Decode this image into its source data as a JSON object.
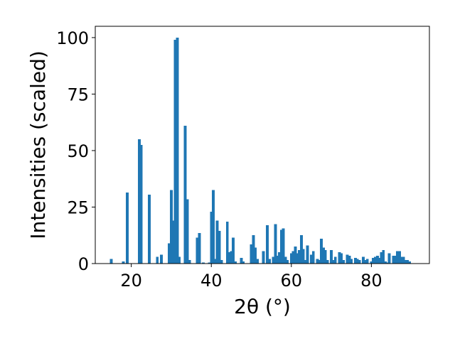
{
  "chart_data": {
    "type": "bar",
    "title": "",
    "xlabel": "2θ (°)",
    "ylabel": "Intensities (scaled)",
    "xlim": [
      11,
      94.5
    ],
    "ylim": [
      0,
      105
    ],
    "xticks": [
      20,
      40,
      60,
      80
    ],
    "yticks": [
      0,
      25,
      50,
      75,
      100
    ],
    "grid": false,
    "bar_width": 0.7,
    "bar_color": "#1f77b4",
    "x": [
      15.0,
      18.0,
      19.0,
      22.0,
      22.5,
      24.5,
      26.5,
      27.5,
      29.5,
      30.0,
      30.5,
      31.0,
      31.5,
      32.0,
      33.5,
      34.0,
      34.5,
      36.5,
      37.0,
      38.0,
      39.5,
      40.0,
      40.5,
      41.0,
      41.5,
      42.0,
      42.5,
      44.0,
      44.5,
      45.0,
      45.5,
      46.0,
      47.5,
      48.0,
      50.0,
      50.5,
      51.0,
      51.5,
      53.0,
      54.0,
      54.5,
      55.5,
      56.0,
      56.5,
      57.0,
      57.5,
      58.0,
      58.5,
      59.0,
      60.0,
      60.5,
      61.0,
      61.5,
      62.0,
      62.5,
      63.0,
      63.5,
      64.0,
      65.0,
      65.5,
      66.5,
      67.0,
      67.5,
      68.0,
      68.5,
      69.0,
      70.0,
      70.5,
      71.0,
      72.0,
      72.5,
      73.0,
      74.0,
      74.5,
      75.0,
      76.0,
      76.5,
      77.0,
      78.0,
      78.5,
      79.0,
      80.0,
      80.5,
      81.0,
      81.5,
      82.0,
      82.5,
      83.0,
      83.5,
      84.0,
      84.5,
      85.5,
      86.0,
      86.5,
      87.0,
      87.5,
      88.0,
      88.5,
      89.0,
      89.5
    ],
    "values": [
      2,
      1,
      31.5,
      55,
      52.5,
      30.5,
      3,
      4,
      9,
      32.5,
      19,
      99,
      100,
      3,
      61,
      28.5,
      1.5,
      11.5,
      13.5,
      0.5,
      0.5,
      23,
      32.5,
      2,
      19,
      14.5,
      1.5,
      18.5,
      5,
      5.5,
      11.5,
      1,
      2.5,
      1,
      8.5,
      12.5,
      7,
      2,
      5.5,
      17,
      2,
      3,
      17.5,
      3.5,
      5,
      15,
      15.5,
      3,
      1.5,
      4.5,
      5.5,
      7.5,
      4.5,
      6,
      12.5,
      6.5,
      1.5,
      8,
      4,
      5.5,
      2,
      1.5,
      11,
      7,
      6,
      1.5,
      6,
      1.5,
      3,
      5,
      4.5,
      1.5,
      4,
      3.5,
      2,
      2.5,
      2,
      1.5,
      3,
      1.5,
      2,
      1,
      2.5,
      3,
      3.5,
      2.5,
      5,
      6,
      1,
      0.5,
      4.5,
      3.5,
      3.5,
      5.5,
      5.5,
      3,
      3,
      1.5,
      1.5,
      1
    ]
  }
}
